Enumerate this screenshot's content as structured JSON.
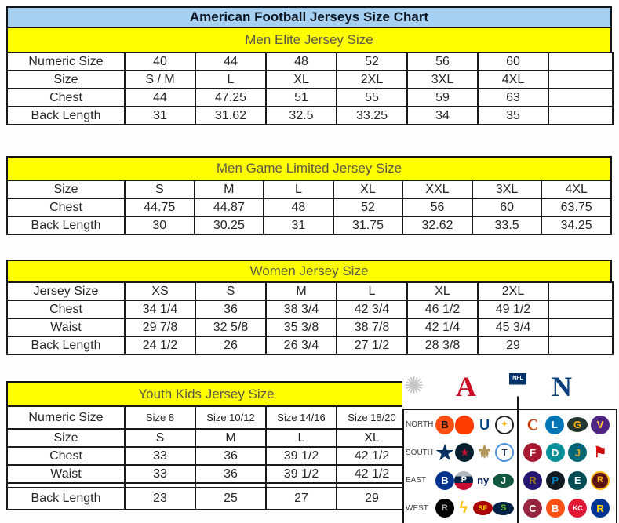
{
  "page": {
    "title": "American Football Jerseys Size Chart"
  },
  "colors": {
    "title_bg": "#a6d1f2",
    "section_header_bg": "#ffff00",
    "afc_red": "#ce1126",
    "nfc_blue": "#0b3e7d"
  },
  "chart_data": [
    {
      "type": "table",
      "title": "Men Elite Jersey Size",
      "rows": [
        [
          "Numeric Size",
          "40",
          "44",
          "48",
          "52",
          "56",
          "60",
          ""
        ],
        [
          "Size",
          "S / M",
          "L",
          "XL",
          "2XL",
          "3XL",
          "4XL",
          ""
        ],
        [
          "Chest",
          "44",
          "47.25",
          "51",
          "55",
          "59",
          "63",
          ""
        ],
        [
          "Back Length",
          "31",
          "31.62",
          "32.5",
          "33.25",
          "34",
          "35",
          ""
        ]
      ]
    },
    {
      "type": "table",
      "title": "Men Game Limited Jersey Size",
      "rows": [
        [
          "Size",
          "S",
          "M",
          "L",
          "XL",
          "XXL",
          "3XL",
          "4XL"
        ],
        [
          "Chest",
          "44.75",
          "44.87",
          "48",
          "52",
          "56",
          "60",
          "63.75"
        ],
        [
          "Back Length",
          "30",
          "30.25",
          "31",
          "31.75",
          "32.62",
          "33.5",
          "34.25"
        ]
      ]
    },
    {
      "type": "table",
      "title": "Women Jersey Size",
      "rows": [
        [
          "Jersey Size",
          "XS",
          "S",
          "M",
          "L",
          "XL",
          "2XL",
          ""
        ],
        [
          "Chest",
          "34 1/4",
          "36",
          "38 3/4",
          "42 3/4",
          "46 1/2",
          "49 1/2",
          ""
        ],
        [
          "Waist",
          "29 7/8",
          "32 5/8",
          "35 3/8",
          "38 7/8",
          "42 1/4",
          "45 3/4",
          ""
        ],
        [
          "Back Length",
          "24 1/2",
          "26",
          "26 3/4",
          "27 1/2",
          "28 3/8",
          "29",
          ""
        ]
      ]
    },
    {
      "type": "table",
      "title": "Youth Kids Jersey Size",
      "rows": [
        [
          "Numeric Size",
          "Size 8",
          "Size 10/12",
          "Size 14/16",
          "Size 18/20"
        ],
        [
          "Size",
          "S",
          "M",
          "L",
          "XL"
        ],
        [
          "Chest",
          "33",
          "36",
          "39 1/2",
          "42 1/2"
        ],
        [
          "Waist",
          "33",
          "36",
          "39 1/2",
          "42 1/2"
        ],
        [
          "Back Length",
          "23",
          "25",
          "27",
          "29"
        ]
      ]
    }
  ],
  "logos": {
    "afc_letter": "A",
    "nfc_letter": "N",
    "nfl_label": "NFL",
    "grid": [
      {
        "label": "NORTH",
        "afc": [
          {
            "team": "bengals",
            "glyph": "B"
          },
          {
            "team": "browns",
            "glyph": ""
          },
          {
            "team": "colts",
            "glyph": "U"
          },
          {
            "team": "steelers",
            "glyph": "✦"
          }
        ],
        "nfc": [
          {
            "team": "bears",
            "glyph": "C"
          },
          {
            "team": "lions",
            "glyph": "L"
          },
          {
            "team": "packers",
            "glyph": "G"
          },
          {
            "team": "vikings",
            "glyph": "V"
          }
        ]
      },
      {
        "label": "SOUTH",
        "afc": [
          {
            "team": "cowboys-star",
            "glyph": "★"
          },
          {
            "team": "texans",
            "glyph": "★"
          },
          {
            "team": "saints",
            "glyph": "⚜"
          },
          {
            "team": "titans",
            "glyph": "T"
          }
        ],
        "nfc": [
          {
            "team": "falcons",
            "glyph": "F"
          },
          {
            "team": "dolphins",
            "glyph": "D"
          },
          {
            "team": "jaguars",
            "glyph": "J"
          },
          {
            "team": "buccaneers",
            "glyph": "⚑"
          }
        ]
      },
      {
        "label": "EAST",
        "afc": [
          {
            "team": "bills",
            "glyph": "B"
          },
          {
            "team": "patriots",
            "glyph": "P"
          },
          {
            "team": "giants",
            "glyph": "ny"
          },
          {
            "team": "jets",
            "glyph": "J"
          }
        ],
        "nfc": [
          {
            "team": "ravens",
            "glyph": "R"
          },
          {
            "team": "panthers",
            "glyph": "P"
          },
          {
            "team": "eagles",
            "glyph": "E"
          },
          {
            "team": "redskins",
            "glyph": "R"
          }
        ]
      },
      {
        "label": "WEST",
        "afc": [
          {
            "team": "raiders",
            "glyph": "R"
          },
          {
            "team": "chargers",
            "glyph": "ϟ"
          },
          {
            "team": "49ers",
            "glyph": "SF"
          },
          {
            "team": "seahawks",
            "glyph": "S"
          }
        ],
        "nfc": [
          {
            "team": "cardinals",
            "glyph": "C"
          },
          {
            "team": "broncos",
            "glyph": "B"
          },
          {
            "team": "chiefs",
            "glyph": "KC"
          },
          {
            "team": "rams",
            "glyph": "R"
          }
        ]
      }
    ]
  }
}
